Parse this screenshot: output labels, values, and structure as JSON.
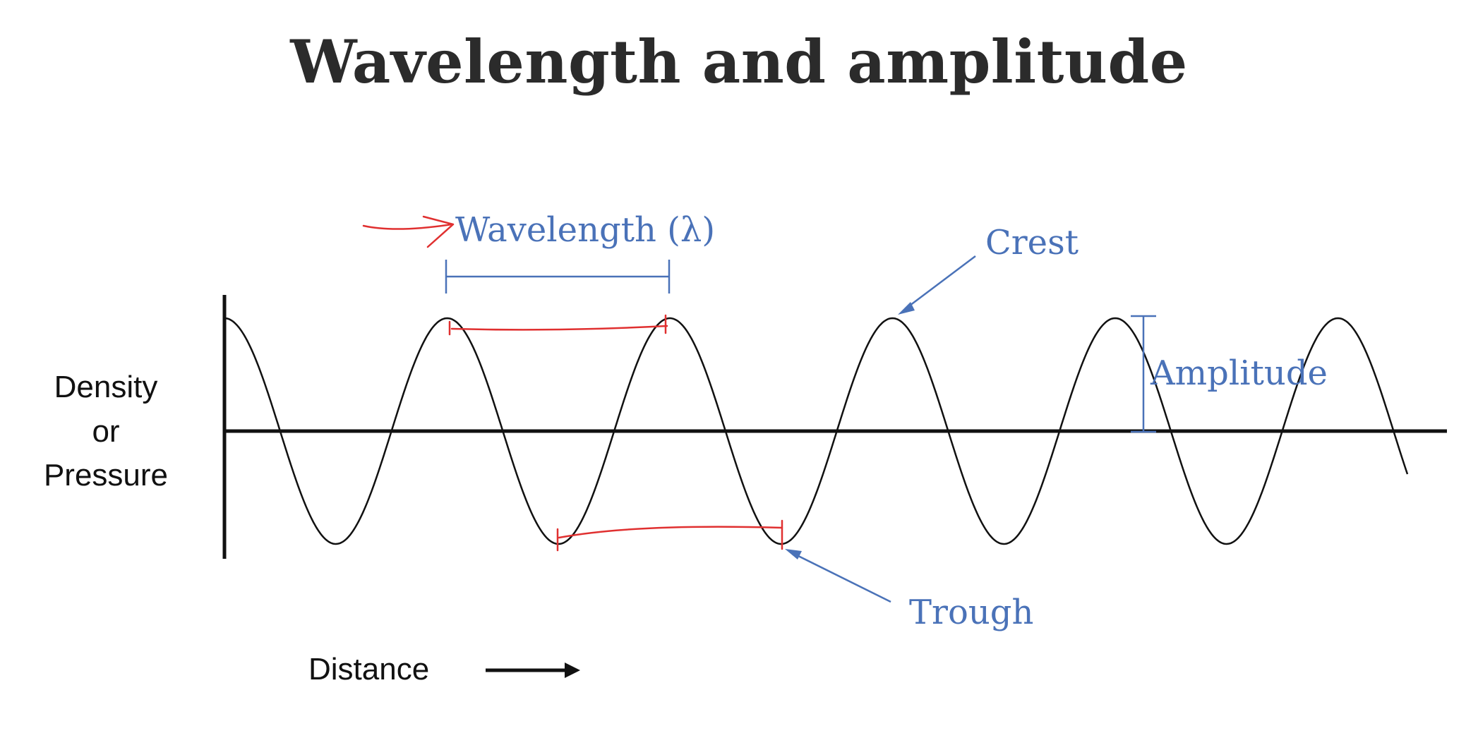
{
  "title": "Wavelength and amplitude",
  "labels": {
    "y_axis": [
      "Density",
      "or",
      "Pressure"
    ],
    "x_axis": "Distance",
    "wavelength": "Wavelength (λ)",
    "crest": "Crest",
    "amplitude": "Amplitude",
    "trough": "Trough"
  },
  "colors": {
    "annotation": "#4a72b8",
    "ink_marks": "#e03030",
    "wave": "#111111"
  }
}
